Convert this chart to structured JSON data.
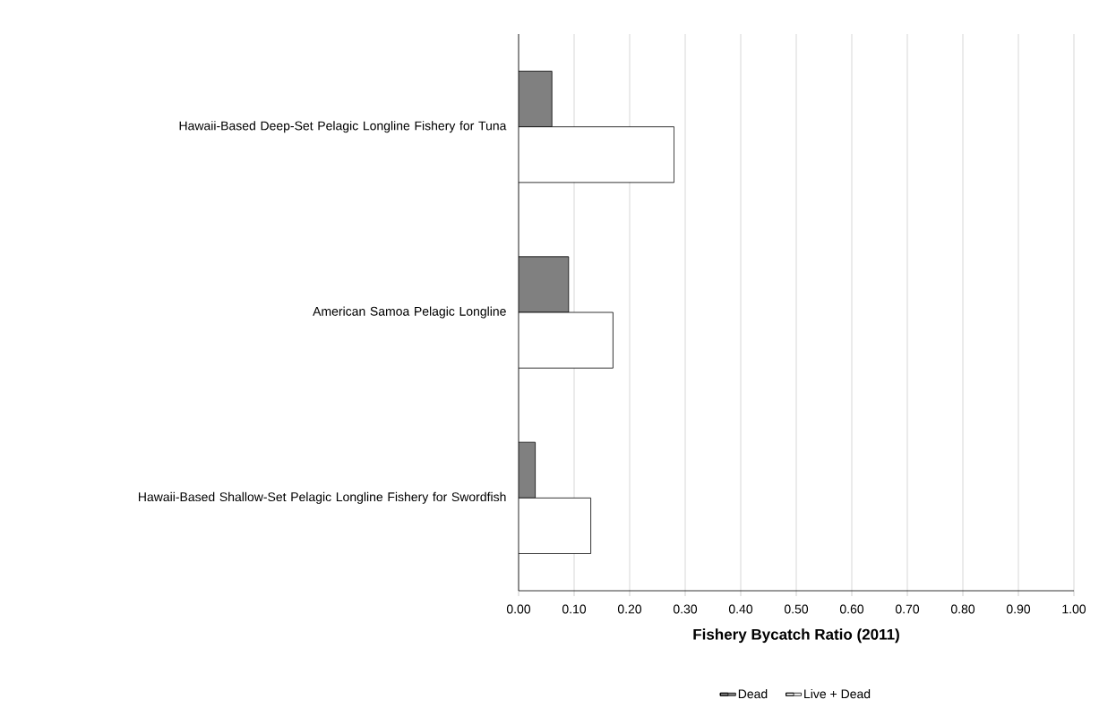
{
  "chart_data": {
    "type": "bar",
    "orientation": "horizontal",
    "categories": [
      "Hawaii-Based Deep-Set Pelagic Longline Fishery for Tuna",
      "American Samoa Pelagic Longline",
      "Hawaii-Based Shallow-Set Pelagic Longline Fishery for Swordfish"
    ],
    "series": [
      {
        "name": "Dead",
        "color": "#808080",
        "values": [
          0.06,
          0.09,
          0.03
        ]
      },
      {
        "name": "Live +  Dead",
        "color": "#ffffff",
        "values": [
          0.28,
          0.17,
          0.13
        ]
      }
    ],
    "xlabel": "Fishery Bycatch Ratio (2011)",
    "xlim": [
      0,
      1
    ],
    "xticks": [
      {
        "value": 0,
        "label": "0.00"
      },
      {
        "value": 0.1,
        "label": "0.10"
      },
      {
        "value": 0.2,
        "label": "0.20"
      },
      {
        "value": 0.3,
        "label": "0.30"
      },
      {
        "value": 0.4,
        "label": "0.40"
      },
      {
        "value": 0.5,
        "label": "0.50"
      },
      {
        "value": 0.6,
        "label": "0.60"
      },
      {
        "value": 0.7,
        "label": "0.70"
      },
      {
        "value": 0.8,
        "label": "0.80"
      },
      {
        "value": 0.9,
        "label": "0.90"
      },
      {
        "value": 1,
        "label": "1.00"
      }
    ],
    "grid": "x",
    "legend": "bottom"
  }
}
